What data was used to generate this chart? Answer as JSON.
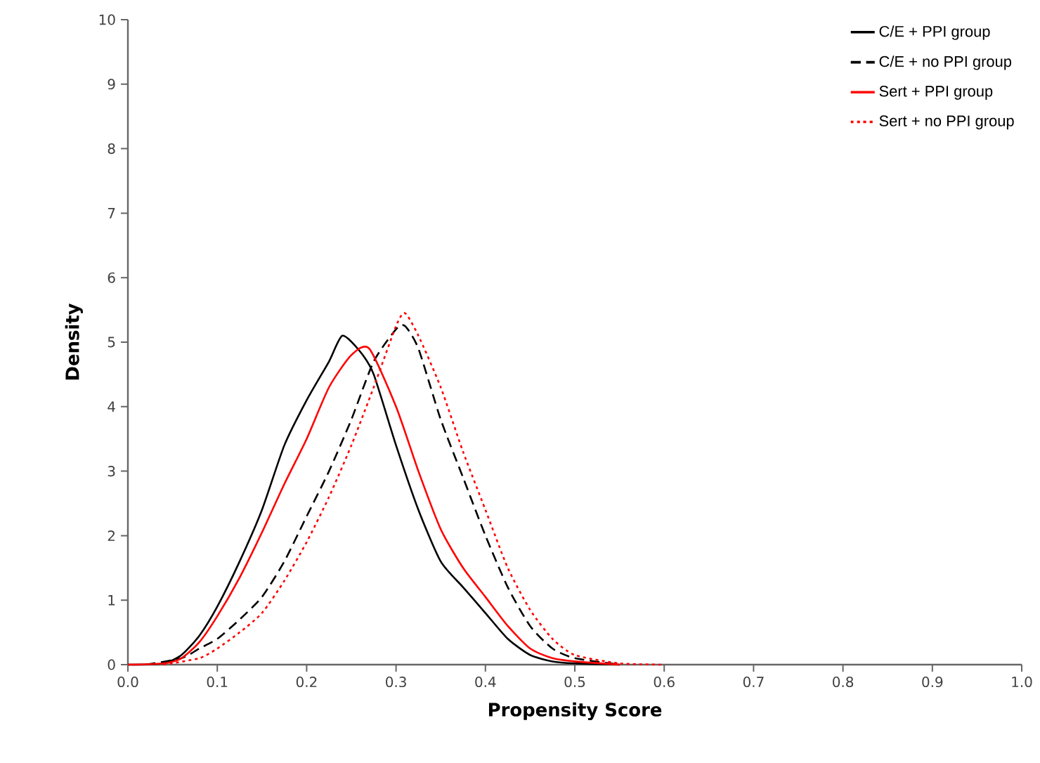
{
  "chart_data": {
    "type": "line",
    "xlabel": "Propensity Score",
    "ylabel": "Density",
    "xlim": [
      0,
      1
    ],
    "ylim": [
      0,
      10
    ],
    "xticks": [
      {
        "value": 0,
        "label": "0.0"
      },
      0.1,
      0.2,
      0.3,
      0.4,
      0.5,
      0.6,
      0.7,
      0.8,
      0.9,
      {
        "value": 1,
        "label": "1.0"
      }
    ],
    "yticks": [
      0,
      1,
      2,
      3,
      4,
      5,
      6,
      7,
      8,
      9,
      10
    ],
    "legend": "top right",
    "grid": false,
    "marker": "none",
    "series": [
      {
        "name": "C/E + PPI group",
        "color": "#000000",
        "line_style": "solid",
        "x": [
          0,
          0.04,
          0.06,
          0.08,
          0.1,
          0.125,
          0.15,
          0.175,
          0.2,
          0.225,
          0.24,
          0.26,
          0.275,
          0.3,
          0.325,
          0.35,
          0.375,
          0.4,
          0.425,
          0.45,
          0.475,
          0.5,
          0.55
        ],
        "values": [
          0,
          0.02,
          0.15,
          0.45,
          0.9,
          1.6,
          2.4,
          3.4,
          4.1,
          4.7,
          5.1,
          4.85,
          4.5,
          3.4,
          2.4,
          1.6,
          1.2,
          0.8,
          0.4,
          0.15,
          0.05,
          0.02,
          0
        ]
      },
      {
        "name": "C/E + no PPI group",
        "color": "#000000",
        "line_style": "dashed",
        "x": [
          0.02,
          0.06,
          0.08,
          0.1,
          0.125,
          0.15,
          0.175,
          0.2,
          0.225,
          0.25,
          0.275,
          0.3,
          0.31,
          0.325,
          0.35,
          0.375,
          0.4,
          0.425,
          0.45,
          0.475,
          0.5,
          0.55
        ],
        "values": [
          0,
          0.1,
          0.25,
          0.4,
          0.7,
          1.05,
          1.6,
          2.3,
          3.0,
          3.8,
          4.7,
          5.2,
          5.25,
          4.9,
          3.8,
          2.9,
          2.0,
          1.2,
          0.6,
          0.25,
          0.1,
          0
        ]
      },
      {
        "name": "Sert + PPI group",
        "color": "#ff0000",
        "line_style": "solid",
        "x": [
          0,
          0.04,
          0.06,
          0.08,
          0.1,
          0.125,
          0.15,
          0.175,
          0.2,
          0.225,
          0.25,
          0.27,
          0.3,
          0.325,
          0.35,
          0.375,
          0.4,
          0.425,
          0.45,
          0.475,
          0.5,
          0.55
        ],
        "values": [
          0,
          0.02,
          0.1,
          0.35,
          0.75,
          1.35,
          2.05,
          2.8,
          3.5,
          4.3,
          4.8,
          4.9,
          4.0,
          3.0,
          2.1,
          1.5,
          1.05,
          0.6,
          0.25,
          0.1,
          0.05,
          0
        ]
      },
      {
        "name": "Sert + no PPI group",
        "color": "#ff0000",
        "line_style": "dotted",
        "x": [
          0.04,
          0.08,
          0.1,
          0.125,
          0.15,
          0.175,
          0.2,
          0.225,
          0.25,
          0.275,
          0.3,
          0.31,
          0.325,
          0.35,
          0.375,
          0.4,
          0.425,
          0.45,
          0.475,
          0.5,
          0.55,
          0.6
        ],
        "values": [
          0,
          0.1,
          0.25,
          0.5,
          0.8,
          1.3,
          1.9,
          2.6,
          3.4,
          4.3,
          5.25,
          5.45,
          5.1,
          4.3,
          3.3,
          2.4,
          1.5,
          0.85,
          0.4,
          0.15,
          0.02,
          0
        ]
      }
    ]
  }
}
